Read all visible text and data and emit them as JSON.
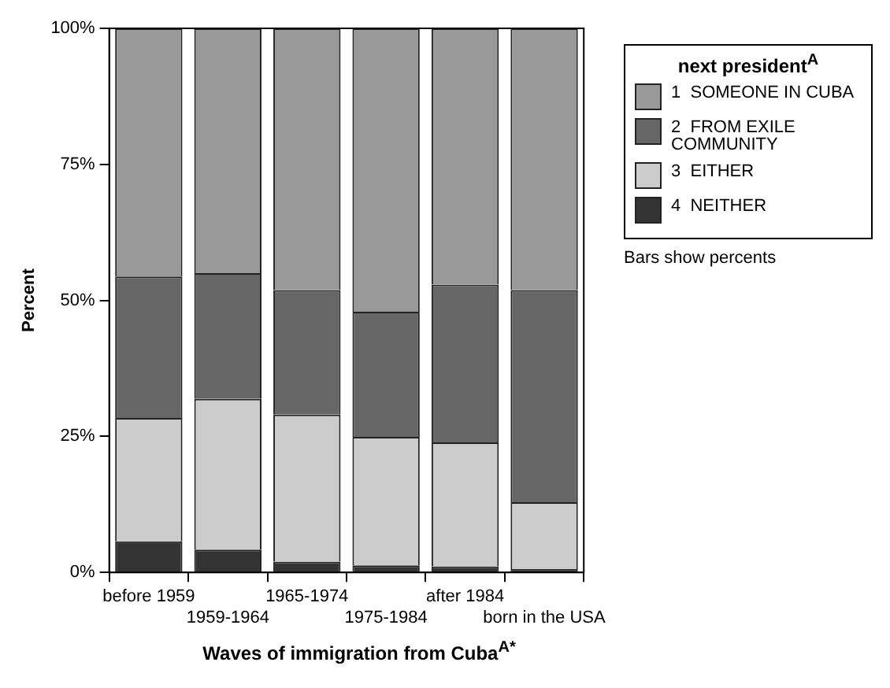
{
  "chart_data": {
    "type": "bar",
    "stacked": true,
    "xlabel": "Waves of immigration from Cuba$^{A*}$",
    "ylabel": "Percent",
    "legend_title": "next president$^{A}$",
    "legend": "top right",
    "grid": false,
    "annotations": [
      "Bars show percents"
    ],
    "categories": [
      "before 1959",
      "1959-1964",
      "1965-1974",
      "1975-1984",
      "after 1984",
      "born in the USA"
    ],
    "ylim": [
      0,
      100
    ],
    "yticks": [
      {
        "value": 0,
        "label": "0%"
      },
      {
        "value": 25,
        "label": "25%"
      },
      {
        "value": 50,
        "label": "50%"
      },
      {
        "value": 75,
        "label": "75%"
      },
      {
        "value": 100,
        "label": "100%"
      }
    ],
    "series": [
      {
        "name": "4  NEITHER",
        "color": "#333333",
        "values": [
          5.7,
          4.2,
          2.0,
          1.3,
          1.1,
          0.6
        ]
      },
      {
        "name": "3  EITHER",
        "color": "#cccccc",
        "values": [
          22.7,
          27.7,
          27.0,
          23.6,
          22.8,
          12.3
        ]
      },
      {
        "name": "2  FROM EXILE COMMUNITY",
        "color": "#666666",
        "values": [
          26.0,
          23.1,
          22.9,
          23.0,
          29.0,
          39.0
        ]
      },
      {
        "name": "1  SOMEONE IN CUBA",
        "color": "#999999",
        "values": [
          45.6,
          45.0,
          48.1,
          52.1,
          47.1,
          48.1
        ]
      }
    ]
  }
}
